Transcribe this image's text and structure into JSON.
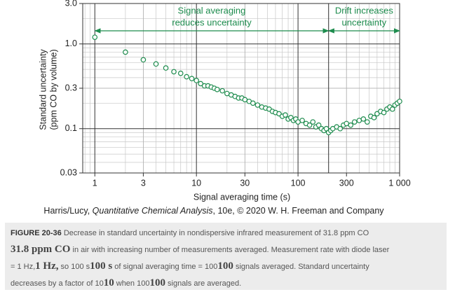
{
  "chart_data": {
    "type": "scatter",
    "x_label": "Signal averaging time (s)",
    "y_label": [
      "Standard uncertainty",
      "(ppm CO by volume)"
    ],
    "x": [
      1,
      2,
      3,
      4,
      5,
      6,
      7,
      8,
      9,
      10,
      11,
      12,
      13,
      14,
      15,
      16,
      18,
      20,
      22,
      24,
      26,
      28,
      30,
      33,
      36,
      40,
      44,
      48,
      52,
      56,
      60,
      65,
      70,
      75,
      80,
      85,
      90,
      95,
      100,
      110,
      120,
      130,
      140,
      150,
      160,
      170,
      180,
      190,
      200,
      210,
      220,
      240,
      260,
      280,
      300,
      330,
      360,
      400,
      440,
      480,
      520,
      560,
      600,
      650,
      700,
      750,
      800,
      850,
      900,
      950,
      1000
    ],
    "values": [
      1.2,
      0.8,
      0.65,
      0.58,
      0.52,
      0.47,
      0.45,
      0.41,
      0.39,
      0.37,
      0.34,
      0.32,
      0.32,
      0.31,
      0.3,
      0.29,
      0.28,
      0.26,
      0.25,
      0.24,
      0.23,
      0.23,
      0.22,
      0.21,
      0.2,
      0.19,
      0.18,
      0.175,
      0.17,
      0.16,
      0.155,
      0.15,
      0.14,
      0.145,
      0.13,
      0.135,
      0.125,
      0.13,
      0.12,
      0.125,
      0.115,
      0.11,
      0.12,
      0.105,
      0.11,
      0.1,
      0.095,
      0.1,
      0.09,
      0.095,
      0.1,
      0.105,
      0.1,
      0.11,
      0.115,
      0.11,
      0.12,
      0.125,
      0.13,
      0.12,
      0.14,
      0.135,
      0.15,
      0.16,
      0.155,
      0.17,
      0.18,
      0.17,
      0.19,
      0.2,
      0.21
    ],
    "color": "#1e8c4e",
    "log_x": true,
    "log_y": true,
    "grid": true,
    "minor_grid": true,
    "xlim": [
      0.76,
      1000
    ],
    "xticks": [
      1,
      3,
      10,
      30,
      100,
      300,
      {
        "value": 1000,
        "label": "1 000"
      }
    ],
    "ylim": [
      0.03,
      3
    ],
    "yticks": [
      {
        "value": 3,
        "label": "3.0"
      },
      {
        "value": 1,
        "label": "1.0"
      },
      0.3,
      0.1,
      0.03
    ],
    "regions": [
      {
        "label": [
          "Signal averaging",
          "reduces uncertainty"
        ],
        "from": 1,
        "to": 200
      },
      {
        "label": [
          "Drift increases",
          "uncertainty"
        ],
        "from": 200,
        "to": 1000
      }
    ]
  },
  "source": {
    "authors": "Harris/Lucy, ",
    "title": "Quantitative Chemical Analysis",
    "rest": ", 10e, © 2020 W. H. Freeman and Company"
  },
  "caption": {
    "label": "FIGURE 20-36",
    "lines": [
      [
        "Decrease in standard uncertainty in nondispersive infrared measurement of 31.8 ppm CO"
      ],
      [
        "31.8 ppm CO",
        "in air with increasing number of measurements averaged. Measurement rate with diode laser"
      ],
      [
        "= 1 Hz,",
        "1 Hz,",
        "so 100 s",
        "100 s",
        "of signal averaging time = 100",
        "100",
        "signals averaged. Standard uncertainty"
      ],
      [
        "decreases by a factor of 10",
        "10",
        "when 100",
        "100",
        "signals are averaged."
      ]
    ]
  }
}
